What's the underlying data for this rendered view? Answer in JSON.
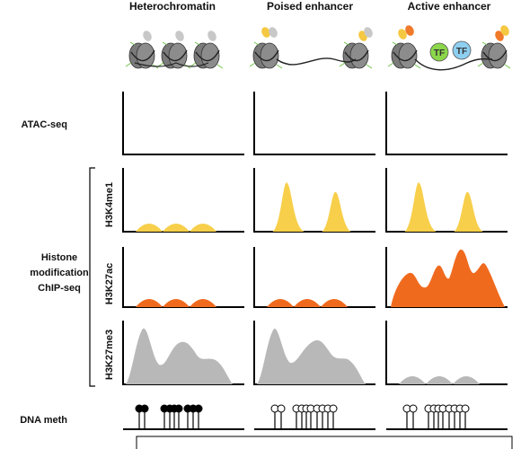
{
  "columns": [
    {
      "id": "heterochromatin",
      "title": "Heterochromatin"
    },
    {
      "id": "poised",
      "title": "Poised enhancer"
    },
    {
      "id": "active",
      "title": "Active enhancer"
    }
  ],
  "rows": {
    "atac": "ATAC-seq",
    "histone_lines": [
      "Histone",
      "modification",
      "ChIP-seq"
    ],
    "dna_meth": "DNA meth"
  },
  "tracks": [
    "H3K4me1",
    "H3K27ac",
    "H3K27me3"
  ],
  "transcription_factor": {
    "label": "TF"
  },
  "colors": {
    "h3k4me1": "#f7cf4a",
    "h3k27ac": "#f06a1e",
    "h3k27me3": "#b8b8b8",
    "tf_green": "#8bd64a",
    "tf_blue": "#8ecff0",
    "nucleosome": "#8c8c8c",
    "mark_grey": "#c8c8c8",
    "mark_yellow": "#f5c842",
    "mark_orange": "#f07a2a"
  },
  "methylation_state": {
    "heterochromatin": "methylated",
    "poised": "unmethylated",
    "active": "unmethylated"
  }
}
